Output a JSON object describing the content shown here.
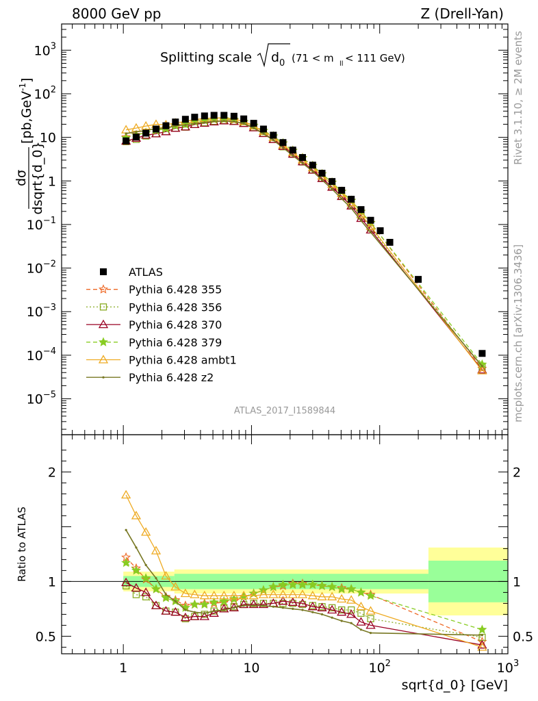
{
  "header": {
    "left": "8000 GeV pp",
    "right": "Z (Drell-Yan)"
  },
  "side_texts": {
    "rivet": "Rivet 3.1.10, ≥ 2M events",
    "mcplots": "mcplots.cern.ch [arXiv:1306.3436]"
  },
  "chart_data": {
    "type": "line",
    "title": "Splitting scale",
    "title_symbol": "d",
    "title_subscript": "0",
    "title_cut": "(71 < m",
    "title_cut_sub": "ll",
    "title_cut_end": " < 111 GeV)",
    "analysis_id": "ATLAS_2017_I1589844",
    "xlabel": "sqrt{d_0} [GeV]",
    "ylabel_top_num": "dσ",
    "ylabel_top_den": "dsqrt{d_0}",
    "ylabel_top_units": "[pb,GeV",
    "ylabel_top_units_sup": "-1",
    "ylabel_top_units_end": "]",
    "ylabel_bottom": "Ratio to ATLAS",
    "x_scale": "log",
    "xlim": [
      0.33,
      1000
    ],
    "ylim_main": [
      1.5e-06,
      4000
    ],
    "ylim_ratio": [
      0.34,
      2.34
    ],
    "x_tick_labels": [
      {
        "v": 1,
        "t": "1"
      },
      {
        "v": 10,
        "t": "10"
      },
      {
        "v": 100,
        "t": "10",
        "e": "2"
      },
      {
        "v": 1000,
        "t": "10",
        "e": "3"
      }
    ],
    "y_main_tick_labels": [
      {
        "v": 1e-05,
        "t": "10",
        "e": "−5"
      },
      {
        "v": 0.0001,
        "t": "10",
        "e": "−4"
      },
      {
        "v": 0.001,
        "t": "10",
        "e": "−3"
      },
      {
        "v": 0.01,
        "t": "10",
        "e": "−2"
      },
      {
        "v": 0.1,
        "t": "10",
        "e": "−1"
      },
      {
        "v": 1,
        "t": "1"
      },
      {
        "v": 10,
        "t": "10"
      },
      {
        "v": 100,
        "t": "10",
        "e": "2"
      },
      {
        "v": 1000,
        "t": "10",
        "e": "3"
      }
    ],
    "y_ratio_tick_labels": [
      {
        "v": 0.5,
        "t": "0.5"
      },
      {
        "v": 1,
        "t": "1"
      },
      {
        "v": 2,
        "t": "2"
      }
    ],
    "x": [
      1.05,
      1.26,
      1.5,
      1.8,
      2.15,
      2.55,
      3.05,
      3.6,
      4.3,
      5.1,
      6.1,
      7.3,
      8.7,
      10.4,
      12.4,
      14.8,
      17.6,
      21,
      25,
      30,
      35.5,
      42.5,
      50.5,
      60,
      71.5,
      85,
      101,
      120,
      200,
      630
    ],
    "data": {
      "name": "ATLAS",
      "color": "#000000",
      "values": [
        8.3,
        10.2,
        12.5,
        15.5,
        18.5,
        22.5,
        26,
        29,
        31,
        32,
        32,
        30.5,
        26.5,
        21,
        15.5,
        11.2,
        7.6,
        5.1,
        3.45,
        2.3,
        1.5,
        0.97,
        0.61,
        0.38,
        0.22,
        0.125,
        0.072,
        0.039,
        0.0055,
        0.00011
      ],
      "band_stat": [
        [
          1,
          2.5,
          0.05
        ],
        [
          2.5,
          240,
          0.07
        ],
        [
          240,
          1000,
          0.19
        ]
      ],
      "band_total": [
        [
          1,
          2.5,
          0.09
        ],
        [
          2.5,
          240,
          0.11
        ],
        [
          240,
          1000,
          0.31
        ]
      ]
    },
    "series": [
      {
        "name": "Pythia 6.428 355",
        "color": "#ee6622",
        "dash": "6,4",
        "marker": "star",
        "fill": false,
        "ratio": [
          1.22,
          1.12,
          1.02,
          0.93,
          0.86,
          0.83,
          0.78,
          0.79,
          0.8,
          0.8,
          0.81,
          0.82,
          0.86,
          0.89,
          0.92,
          0.95,
          0.96,
          0.98,
          0.98,
          0.97,
          0.96,
          0.95,
          0.94,
          0.93,
          0.9,
          0.88,
          null,
          null,
          null,
          0.45
        ]
      },
      {
        "name": "Pythia 6.428 356",
        "color": "#88aa22",
        "dash": "2,3",
        "marker": "square",
        "fill": false,
        "ratio": [
          0.96,
          0.88,
          0.86,
          0.78,
          0.73,
          0.72,
          0.66,
          0.68,
          0.7,
          0.73,
          0.76,
          0.77,
          0.79,
          0.8,
          0.8,
          0.8,
          0.8,
          0.8,
          0.79,
          0.78,
          0.77,
          0.76,
          0.74,
          0.74,
          0.71,
          0.66,
          null,
          null,
          null,
          0.49
        ]
      },
      {
        "name": "Pythia 6.428 370",
        "color": "#990022",
        "dash": "",
        "marker": "triangle",
        "fill": false,
        "ratio": [
          0.99,
          0.94,
          0.9,
          0.78,
          0.73,
          0.72,
          0.67,
          0.68,
          0.68,
          0.71,
          0.75,
          0.76,
          0.79,
          0.79,
          0.79,
          0.8,
          0.82,
          0.81,
          0.8,
          0.77,
          0.76,
          0.74,
          0.72,
          0.7,
          0.63,
          0.6,
          null,
          null,
          null,
          0.42
        ]
      },
      {
        "name": "Pythia 6.428 379",
        "color": "#88cc22",
        "dash": "6,4",
        "marker": "star",
        "fill": true,
        "ratio": [
          1.17,
          1.1,
          1.03,
          0.93,
          0.85,
          0.82,
          0.76,
          0.79,
          0.79,
          0.81,
          0.82,
          0.84,
          0.86,
          0.89,
          0.92,
          0.95,
          0.97,
          0.97,
          0.97,
          0.97,
          0.96,
          0.95,
          0.93,
          0.93,
          0.9,
          0.87,
          null,
          null,
          null,
          0.56
        ]
      },
      {
        "name": "Pythia 6.428 ambt1",
        "color": "#eeaa22",
        "dash": "",
        "marker": "triangle",
        "fill": false,
        "ratio": [
          1.79,
          1.6,
          1.45,
          1.28,
          1.05,
          0.95,
          0.89,
          0.88,
          0.87,
          0.87,
          0.87,
          0.87,
          0.87,
          0.87,
          0.88,
          0.88,
          0.88,
          0.88,
          0.88,
          0.87,
          0.86,
          0.86,
          0.84,
          0.83,
          0.77,
          0.73,
          null,
          null,
          null,
          0.4
        ]
      },
      {
        "name": "Pythia 6.428 z2",
        "color": "#777722",
        "dash": "",
        "marker": "dot",
        "fill": true,
        "ratio": [
          1.47,
          1.31,
          1.15,
          1.03,
          0.88,
          0.82,
          0.74,
          0.72,
          0.71,
          0.73,
          0.74,
          0.76,
          0.78,
          0.78,
          0.78,
          0.77,
          0.76,
          0.75,
          0.74,
          0.72,
          0.7,
          0.67,
          0.64,
          0.62,
          0.56,
          0.53,
          null,
          null,
          null,
          0.51
        ]
      }
    ]
  }
}
